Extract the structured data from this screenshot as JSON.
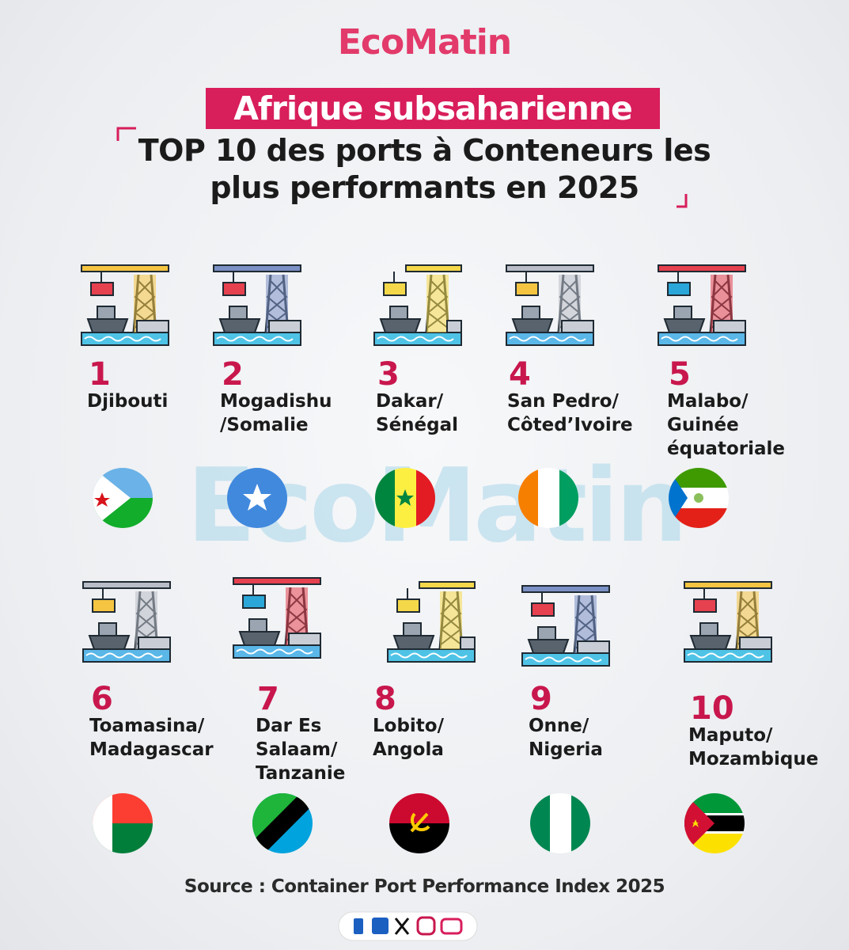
{
  "header": {
    "logo": "EcoMatin",
    "subtitle": "Afrique subsaharienne",
    "title_lines": [
      "TOP 10 des ports à Conteneurs les",
      "plus performants en 2025"
    ]
  },
  "ports": [
    {
      "rank": 1,
      "name_lines": [
        "Djibouti"
      ]
    },
    {
      "rank": 2,
      "name_lines": [
        "Mogadishu",
        "/Somalie"
      ]
    },
    {
      "rank": 3,
      "name_lines": [
        "Dakar/",
        "Sénégal"
      ]
    },
    {
      "rank": 4,
      "name_lines": [
        "San Pedro/",
        "Côted’Ivoire"
      ]
    },
    {
      "rank": 5,
      "name_lines": [
        "Malabo/",
        "Guinée",
        "équatoriale"
      ]
    },
    {
      "rank": 6,
      "name_lines": [
        "Toamasina/",
        "Madagascar"
      ]
    },
    {
      "rank": 7,
      "name_lines": [
        "Dar Es",
        "Salaam/",
        "Tanzanie"
      ]
    },
    {
      "rank": 8,
      "name_lines": [
        "Lobito/",
        "Angola"
      ]
    },
    {
      "rank": 9,
      "name_lines": [
        "Onne/",
        "Nigeria"
      ]
    },
    {
      "rank": 10,
      "name_lines": [
        "Maputo/",
        "Mozambique"
      ]
    }
  ],
  "footer": {
    "source": "Source : Container Port Performance Index 2025"
  }
}
